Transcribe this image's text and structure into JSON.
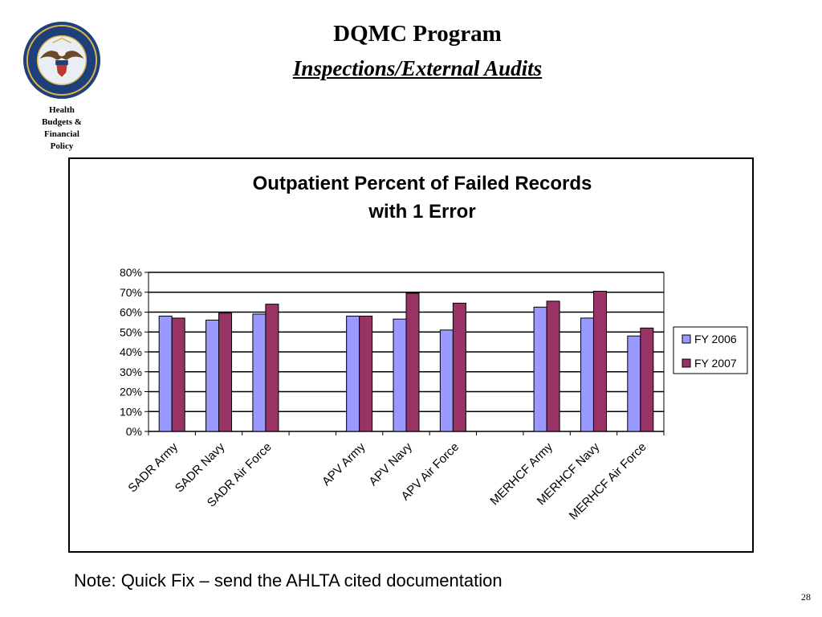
{
  "slide": {
    "title": "DQMC Program",
    "subtitle": "Inspections/External Audits",
    "dept_label_lines": [
      "Health",
      "Budgets &",
      "Financial",
      "Policy"
    ],
    "seal_icon": "department-of-defense-seal",
    "note": "Note:  Quick Fix – send the AHLTA cited documentation",
    "page_number": "28"
  },
  "chart_data": {
    "type": "bar",
    "title_lines": [
      "Outpatient Percent of Failed Records",
      "with 1 Error"
    ],
    "categories": [
      "SADR Army",
      "SADR Navy",
      "SADR Air Force",
      "",
      "APV Army",
      "APV Navy",
      "APV Air Force",
      "",
      "MERHCF Army",
      "MERHCF Navy",
      "MERHCF Air Force"
    ],
    "series": [
      {
        "name": "FY 2006",
        "color": "#9999ff",
        "values": [
          58,
          56,
          59,
          null,
          58,
          56.5,
          51,
          null,
          62.5,
          57,
          48
        ]
      },
      {
        "name": "FY 2007",
        "color": "#993366",
        "values": [
          57,
          59.5,
          64,
          null,
          58,
          69.5,
          64.5,
          null,
          65.5,
          70.5,
          52
        ]
      }
    ],
    "ylim": [
      0,
      80
    ],
    "y_ticks": [
      "0%",
      "10%",
      "20%",
      "30%",
      "40%",
      "50%",
      "60%",
      "70%",
      "80%"
    ],
    "y_tick_values": [
      0,
      10,
      20,
      30,
      40,
      50,
      60,
      70,
      80
    ],
    "grid": true,
    "legend_position": "right"
  }
}
